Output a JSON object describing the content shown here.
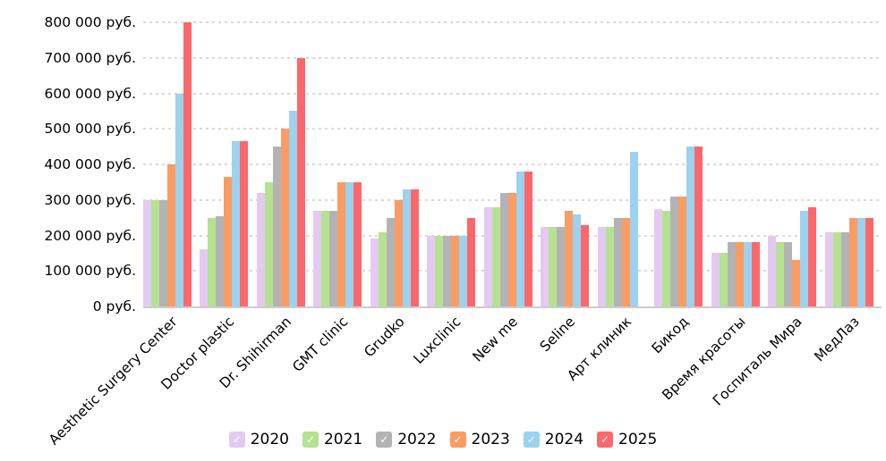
{
  "chart_data": {
    "type": "bar",
    "title": "",
    "xlabel": "",
    "ylabel": "",
    "currency_suffix": "руб.",
    "categories": [
      "Aesthetic Surgery Center",
      "Doctor plastic",
      "Dr. Shihirman",
      "GMT clinic",
      "Grudko",
      "Luxclinic",
      "New me",
      "Seline",
      "Арт клиник",
      "Бикод",
      "Время красоты",
      "Госпиталь Мира",
      "МедЛаз"
    ],
    "series": [
      {
        "name": "2020",
        "color": "#e4caf2",
        "values": [
          300000,
          160000,
          320000,
          270000,
          190000,
          200000,
          280000,
          225000,
          225000,
          275000,
          150000,
          200000,
          210000
        ]
      },
      {
        "name": "2021",
        "color": "#b5e291",
        "values": [
          300000,
          250000,
          350000,
          270000,
          210000,
          200000,
          280000,
          225000,
          225000,
          270000,
          150000,
          180000,
          210000
        ]
      },
      {
        "name": "2022",
        "color": "#b3b3b6",
        "values": [
          300000,
          255000,
          450000,
          270000,
          250000,
          200000,
          320000,
          225000,
          250000,
          310000,
          180000,
          180000,
          210000
        ]
      },
      {
        "name": "2023",
        "color": "#fa9c64",
        "values": [
          400000,
          365000,
          500000,
          350000,
          300000,
          200000,
          320000,
          270000,
          250000,
          310000,
          180000,
          130000,
          250000
        ]
      },
      {
        "name": "2024",
        "color": "#9cd2ee",
        "values": [
          600000,
          465000,
          550000,
          350000,
          330000,
          200000,
          380000,
          260000,
          435000,
          450000,
          180000,
          270000,
          250000
        ]
      },
      {
        "name": "2025",
        "color": "#fa686c",
        "values": [
          800000,
          465000,
          700000,
          350000,
          330000,
          250000,
          380000,
          230000,
          null,
          450000,
          180000,
          280000,
          250000
        ]
      }
    ],
    "ylim": [
      0,
      800000
    ],
    "y_tick_step": 100000,
    "y_tick_labels": [
      "0 руб.",
      "100 000 руб.",
      "200 000 руб.",
      "300 000 руб.",
      "400 000 руб.",
      "500 000 руб.",
      "600 000 руб.",
      "700 000 руб.",
      "800 000 руб."
    ],
    "grid": "horizontal-dashed",
    "legend_position": "bottom",
    "legend_check_glyph": "✓"
  }
}
